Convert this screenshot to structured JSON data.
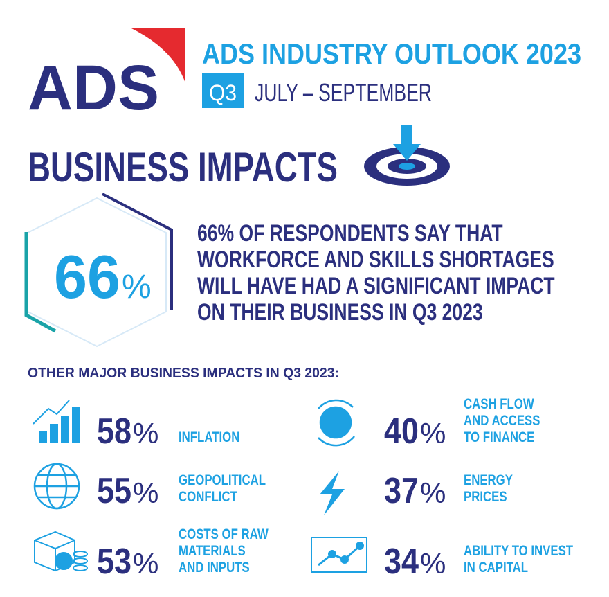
{
  "header": {
    "logo": "ADS",
    "title": "ADS INDUSTRY OUTLOOK 2023",
    "quarter": "Q3",
    "period": "JULY – SEPTEMBER"
  },
  "section_title": "BUSINESS IMPACTS",
  "highlight": {
    "value": "66",
    "unit": "%",
    "lines": [
      "66% OF RESPONDENTS SAY THAT",
      "WORKFORCE AND SKILLS SHORTAGES",
      "WILL HAVE HAD A SIGNIFICANT IMPACT",
      "ON THEIR BUSINESS IN Q3 2023"
    ]
  },
  "subheading": "OTHER MAJOR BUSINESS IMPACTS IN Q3 2023:",
  "items": [
    {
      "value": "58",
      "unit": "%",
      "label": [
        "INFLATION"
      ]
    },
    {
      "value": "40",
      "unit": "%",
      "label": [
        "CASH FLOW",
        "AND ACCESS",
        "TO FINANCE"
      ]
    },
    {
      "value": "55",
      "unit": "%",
      "label": [
        "GEOPOLITICAL",
        "CONFLICT"
      ]
    },
    {
      "value": "37",
      "unit": "%",
      "label": [
        "ENERGY",
        "PRICES"
      ]
    },
    {
      "value": "53",
      "unit": "%",
      "label": [
        "COSTS OF RAW",
        "MATERIALS",
        "AND INPUTS"
      ]
    },
    {
      "value": "34",
      "unit": "%",
      "label": [
        "ABILITY TO INVEST",
        "IN CAPITAL"
      ]
    }
  ]
}
